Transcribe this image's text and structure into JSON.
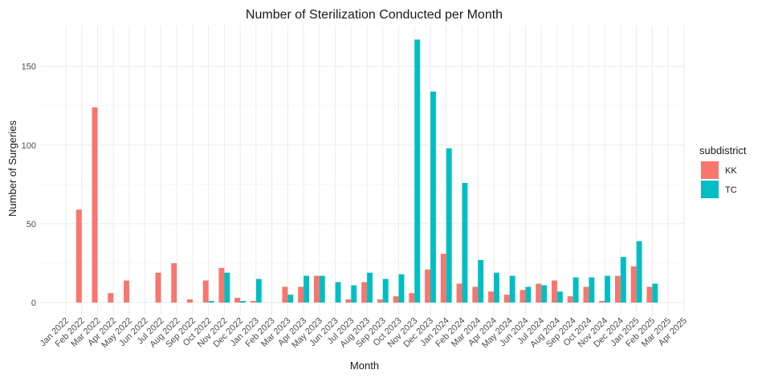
{
  "chart_data": {
    "type": "bar",
    "title": "Number of Sterilization Conducted per Month",
    "xlabel": "Month",
    "ylabel": "Number of Surgeries",
    "ylim": [
      -7,
      175
    ],
    "yticks": [
      0,
      50,
      100,
      150
    ],
    "grid": true,
    "legend": {
      "title": "subdistrict",
      "position": "right"
    },
    "categories": [
      "Jan 2022",
      "Feb 2022",
      "Mar 2022",
      "Apr 2022",
      "May 2022",
      "Jun 2022",
      "Jul 2022",
      "Aug 2022",
      "Sep 2022",
      "Oct 2022",
      "Nov 2022",
      "Dec 2022",
      "Jan 2023",
      "Feb 2023",
      "Mar 2023",
      "Apr 2023",
      "May 2023",
      "Jun 2023",
      "Jul 2023",
      "Aug 2023",
      "Sep 2023",
      "Oct 2023",
      "Nov 2023",
      "Dec 2023",
      "Jan 2024",
      "Feb 2024",
      "Mar 2024",
      "Apr 2024",
      "May 2024",
      "Jun 2024",
      "Jul 2024",
      "Aug 2024",
      "Sep 2024",
      "Oct 2024",
      "Nov 2024",
      "Dec 2024",
      "Jan 2025",
      "Feb 2025",
      "Mar 2025",
      "Apr 2025"
    ],
    "series": [
      {
        "name": "KK",
        "color": "#F8766D",
        "values": [
          null,
          59,
          124,
          6,
          14,
          null,
          19,
          25,
          2,
          14,
          22,
          3,
          1,
          null,
          10,
          10,
          17,
          null,
          2,
          13,
          2,
          4,
          6,
          21,
          31,
          12,
          10,
          7,
          5,
          8,
          12,
          14,
          4,
          10,
          1,
          17,
          23,
          10,
          null,
          null
        ]
      },
      {
        "name": "TC",
        "color": "#00BFC4",
        "values": [
          null,
          null,
          null,
          null,
          null,
          null,
          null,
          null,
          null,
          1,
          19,
          1,
          15,
          null,
          5,
          17,
          17,
          13,
          11,
          19,
          15,
          18,
          167,
          134,
          98,
          76,
          27,
          19,
          17,
          10,
          11,
          7,
          16,
          16,
          17,
          29,
          39,
          12,
          null,
          null
        ]
      }
    ]
  }
}
